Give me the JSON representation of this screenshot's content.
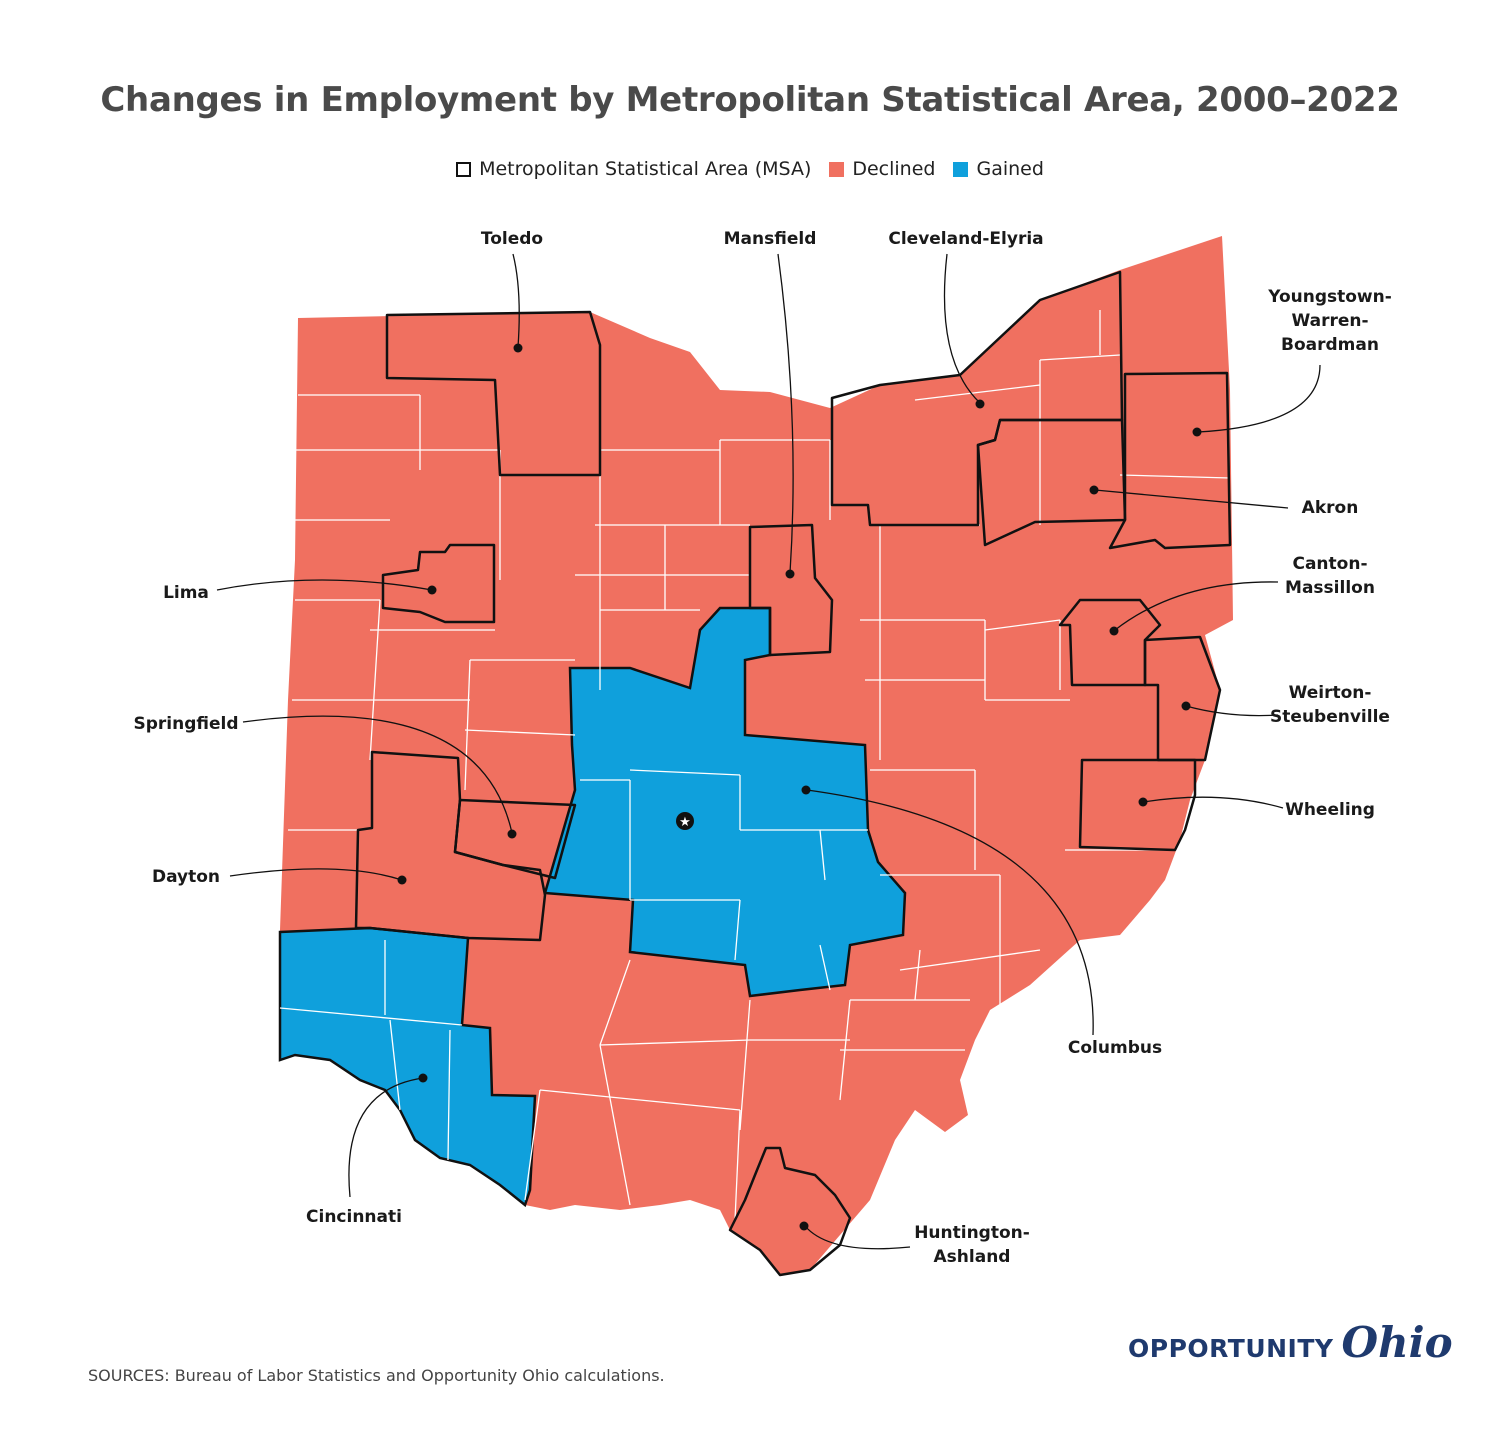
{
  "title": "Changes in Employment by Metropolitan Statistical Area, 2000–2022",
  "legend": {
    "msa": "Metropolitan Statistical Area (MSA)",
    "declined": "Declined",
    "gained": "Gained"
  },
  "colors": {
    "declined": "#f07060",
    "gained": "#0fa0dc",
    "border": "#111111",
    "county_line": "#ffffff"
  },
  "labels": {
    "toledo": "Toledo",
    "mansfield": "Mansfield",
    "cleveland": "Cleveland-Elyria",
    "youngstown_1": "Youngstown-",
    "youngstown_2": "Warren-",
    "youngstown_3": "Boardman",
    "akron": "Akron",
    "canton_1": "Canton-",
    "canton_2": "Massillon",
    "lima": "Lima",
    "springfield": "Springfield",
    "weirton_1": "Weirton-",
    "weirton_2": "Steubenville",
    "wheeling": "Wheeling",
    "dayton": "Dayton",
    "columbus": "Columbus",
    "cincinnati": "Cincinnati",
    "huntington_1": "Huntington-",
    "huntington_2": "Ashland"
  },
  "msa_status": {
    "Toledo": "Declined",
    "Mansfield": "Declined",
    "Cleveland-Elyria": "Declined",
    "Youngstown-Warren-Boardman": "Declined",
    "Akron": "Declined",
    "Canton-Massillon": "Declined",
    "Lima": "Declined",
    "Springfield": "Declined",
    "Weirton-Steubenville": "Declined",
    "Wheeling": "Declined",
    "Dayton": "Declined",
    "Columbus": "Gained",
    "Cincinnati": "Gained",
    "Huntington-Ashland": "Declined"
  },
  "source": "SOURCES: Bureau of Labor Statistics and Opportunity Ohio calculations.",
  "logo": {
    "part1": "OPPORTUNITY",
    "part2": "Ohio"
  }
}
